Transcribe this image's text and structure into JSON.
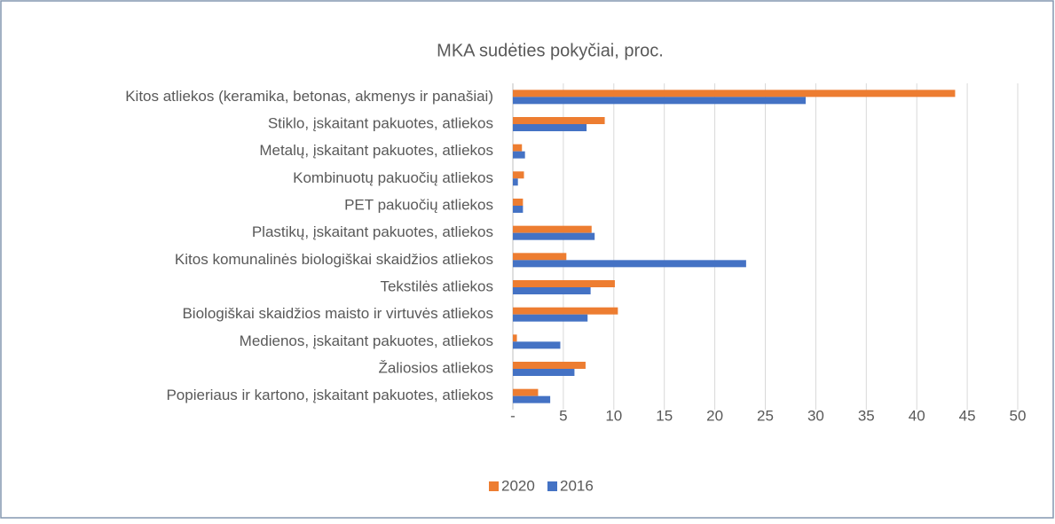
{
  "chart_data": {
    "type": "bar",
    "orientation": "horizontal",
    "title": "MKA sudėties pokyčiai, proc.",
    "categories": [
      "Kitos atliekos (keramika, betonas, akmenys ir panašiai)",
      "Stiklo, įskaitant pakuotes, atliekos",
      "Metalų, įskaitant pakuotes, atliekos",
      "Kombinuotų pakuočių atliekos",
      "PET pakuočių atliekos",
      "Plastikų, įskaitant pakuotes, atliekos",
      "Kitos komunalinės biologiškai skaidžios atliekos",
      "Tekstilės atliekos",
      "Biologiškai skaidžios maisto ir virtuvės atliekos",
      "Medienos, įskaitant pakuotes, atliekos",
      "Žaliosios atliekos",
      "Popieriaus ir kartono, įskaitant pakuotes, atliekos"
    ],
    "series": [
      {
        "name": "2020",
        "color": "#ed7d31",
        "values": [
          43.8,
          9.1,
          0.9,
          1.1,
          1.0,
          7.8,
          5.3,
          10.1,
          10.4,
          0.4,
          7.2,
          2.5
        ]
      },
      {
        "name": "2016",
        "color": "#4472c4",
        "values": [
          29.0,
          7.3,
          1.2,
          0.5,
          1.0,
          8.1,
          23.1,
          7.7,
          7.4,
          4.7,
          6.1,
          3.7
        ]
      }
    ],
    "xlim": [
      0,
      50
    ],
    "xticks": [
      {
        "value": 0,
        "label": "-"
      },
      5,
      10,
      15,
      20,
      25,
      30,
      35,
      40,
      45,
      50
    ],
    "grid": true,
    "legend": "bottom"
  }
}
